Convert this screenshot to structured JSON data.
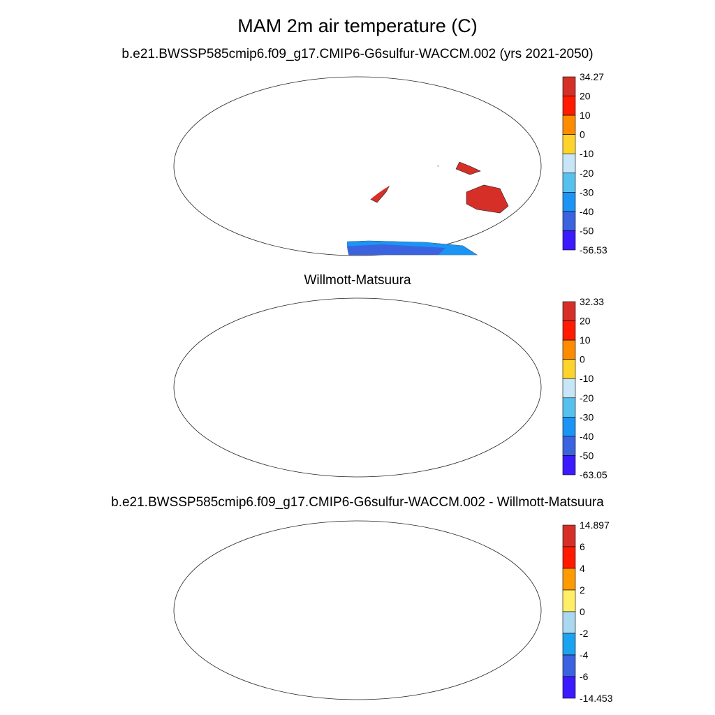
{
  "figure": {
    "title": "MAM 2m air temperature (C)"
  },
  "panels": [
    {
      "name": "model",
      "title": "b.e21.BWSSP585cmip6.f09_g17.CMIP6-G6sulfur-WACCM.002 (yrs 2021-2050)",
      "colorbar": {
        "labels": [
          "34.27",
          "20",
          "10",
          "0",
          "-10",
          "-20",
          "-30",
          "-40",
          "-50",
          "-56.53"
        ],
        "colors": [
          "#d62f27",
          "#ff1a00",
          "#ff8c00",
          "#ffd42a",
          "#c7e6f7",
          "#56c1ef",
          "#1a95f5",
          "#3b63e0",
          "#3b1aff"
        ]
      }
    },
    {
      "name": "observations",
      "title": "Willmott-Matsuura",
      "colorbar": {
        "labels": [
          "32.33",
          "20",
          "10",
          "0",
          "-10",
          "-20",
          "-30",
          "-40",
          "-50",
          "-63.05"
        ],
        "colors": [
          "#d62f27",
          "#ff1a00",
          "#ff8c00",
          "#ffd42a",
          "#c7e6f7",
          "#56c1ef",
          "#1a95f5",
          "#3b63e0",
          "#3b1aff"
        ]
      }
    },
    {
      "name": "difference",
      "title": "b.e21.BWSSP585cmip6.f09_g17.CMIP6-G6sulfur-WACCM.002 - Willmott-Matsuura",
      "colorbar": {
        "labels": [
          "14.897",
          "6",
          "4",
          "2",
          "0",
          "-2",
          "-4",
          "-6",
          "-14.453"
        ],
        "colors": [
          "#d62f27",
          "#ff1a00",
          "#ff9a00",
          "#ffee66",
          "#a9d8f0",
          "#1aa3f0",
          "#3b63e0",
          "#3b1aff"
        ]
      }
    }
  ]
}
